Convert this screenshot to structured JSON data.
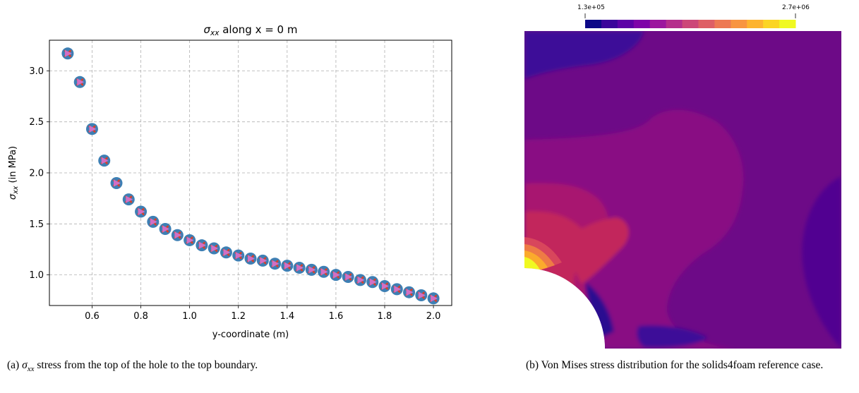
{
  "chart_data": [
    {
      "type": "scatter",
      "title_symbol": "σ",
      "title_subscript": "xx",
      "title_text": " along x = 0 m",
      "xlabel": "y-coordinate (m)",
      "ylabel_symbol": "σ",
      "ylabel_subscript": "xx",
      "ylabel_text": " (in MPa)",
      "xlim": [
        0.425,
        2.075
      ],
      "ylim": [
        0.7,
        3.3
      ],
      "xticks": [
        0.6,
        0.8,
        1.0,
        1.2,
        1.4,
        1.6,
        1.8,
        2.0
      ],
      "xtick_labels": [
        "0.6",
        "0.8",
        "1.0",
        "1.2",
        "1.4",
        "1.6",
        "1.8",
        "2.0"
      ],
      "yticks": [
        1.0,
        1.5,
        2.0,
        2.5,
        3.0
      ],
      "ytick_labels": [
        "1.0",
        "1.5",
        "2.0",
        "2.5",
        "3.0"
      ],
      "grid": true,
      "x": [
        0.5,
        0.55,
        0.6,
        0.65,
        0.7,
        0.75,
        0.8,
        0.85,
        0.9,
        0.95,
        1.0,
        1.05,
        1.1,
        1.15,
        1.2,
        1.25,
        1.3,
        1.35,
        1.4,
        1.45,
        1.5,
        1.55,
        1.6,
        1.65,
        1.7,
        1.75,
        1.8,
        1.85,
        1.9,
        1.95,
        2.0
      ],
      "y": [
        3.17,
        2.89,
        2.43,
        2.12,
        1.9,
        1.74,
        1.62,
        1.52,
        1.45,
        1.39,
        1.34,
        1.29,
        1.26,
        1.22,
        1.19,
        1.16,
        1.14,
        1.11,
        1.09,
        1.07,
        1.05,
        1.03,
        1.0,
        0.98,
        0.95,
        0.93,
        0.89,
        0.86,
        0.83,
        0.8,
        0.77
      ],
      "colors": {
        "circle": "#3d7fb4",
        "cross": "#d6402c",
        "triangle": "#d26fc3"
      }
    }
  ],
  "contour": {
    "colorbar_min": "1.3e+05",
    "colorbar_max": "2.7e+06",
    "colorbar_colors": [
      "#0d0887",
      "#3b049a",
      "#5c01a6",
      "#7e03a8",
      "#9c179e",
      "#b52f8c",
      "#cc4778",
      "#de5f65",
      "#ed7953",
      "#f89540",
      "#fdb42f",
      "#fbd524",
      "#f0f921"
    ]
  },
  "captions": {
    "a_label": "(a) ",
    "a_symbol": "σ",
    "a_subscript": "xx",
    "a_text": " stress from the top of the hole to the top boundary.",
    "b_text": "(b) Von Mises stress distribution for the solids4foam reference case."
  }
}
